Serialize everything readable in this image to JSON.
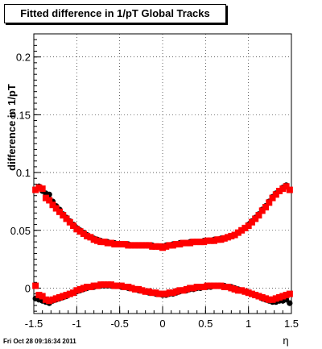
{
  "title": "Fitted difference in 1/pT  Global Tracks",
  "footer": "Fri Oct 28 09:16:34 2011",
  "chart_data": {
    "type": "scatter",
    "title": "Fitted difference in 1/pT  Global Tracks",
    "xlabel": "η",
    "ylabel": "difference in 1/pT",
    "xlim": [
      -1.5,
      1.5
    ],
    "ylim": [
      -0.022,
      0.22
    ],
    "grid": true,
    "x_ticks": [
      -1.5,
      -1,
      -0.5,
      0,
      0.5,
      1,
      1.5
    ],
    "x_tick_labels": [
      "-1.5",
      "-1",
      "-0.5",
      "0",
      "0.5",
      "1",
      "1.5"
    ],
    "y_ticks": [
      0,
      0.05,
      0.1,
      0.15,
      0.2
    ],
    "y_tick_labels": [
      "0",
      "0.05",
      "0.1",
      "0.15",
      "0.2"
    ],
    "marker_colors": {
      "black": "#000000",
      "red": "#ff0000"
    },
    "upper_points_eta": [
      -1.48,
      -1.44,
      -1.4,
      -1.36,
      -1.32,
      -1.28,
      -1.24,
      -1.2,
      -1.16,
      -1.12,
      -1.08,
      -1.04,
      -1.0,
      -0.96,
      -0.92,
      -0.88,
      -0.84,
      -0.8,
      -0.76,
      -0.72,
      -0.68,
      -0.64,
      -0.6,
      -0.56,
      -0.52,
      -0.48,
      -0.44,
      -0.4,
      -0.36,
      -0.32,
      -0.28,
      -0.24,
      -0.2,
      -0.16,
      -0.12,
      -0.08,
      -0.04,
      0.0,
      0.04,
      0.08,
      0.12,
      0.16,
      0.2,
      0.24,
      0.28,
      0.32,
      0.36,
      0.4,
      0.44,
      0.48,
      0.52,
      0.56,
      0.6,
      0.64,
      0.68,
      0.72,
      0.76,
      0.8,
      0.84,
      0.88,
      0.92,
      0.96,
      1.0,
      1.04,
      1.08,
      1.12,
      1.16,
      1.2,
      1.24,
      1.28,
      1.32,
      1.36,
      1.4,
      1.44,
      1.48
    ],
    "upper_black": [
      0.085,
      0.088,
      0.084,
      0.082,
      0.081,
      0.075,
      0.071,
      0.068,
      0.064,
      0.061,
      0.058,
      0.055,
      0.052,
      0.05,
      0.048,
      0.046,
      0.044,
      0.043,
      0.042,
      0.041,
      0.04,
      0.04,
      0.039,
      0.039,
      0.038,
      0.038,
      0.038,
      0.038,
      0.037,
      0.037,
      0.037,
      0.037,
      0.037,
      0.037,
      0.037,
      0.036,
      0.036,
      0.036,
      0.037,
      0.037,
      0.038,
      0.038,
      0.039,
      0.039,
      0.039,
      0.04,
      0.04,
      0.04,
      0.04,
      0.041,
      0.041,
      0.041,
      0.042,
      0.042,
      0.043,
      0.043,
      0.044,
      0.045,
      0.046,
      0.048,
      0.05,
      0.052,
      0.055,
      0.058,
      0.061,
      0.064,
      0.068,
      0.071,
      0.075,
      0.079,
      0.082,
      0.084,
      0.087,
      0.089,
      0.085
    ],
    "upper_red": [
      0.085,
      0.087,
      0.086,
      0.078,
      0.076,
      0.072,
      0.069,
      0.066,
      0.063,
      0.06,
      0.057,
      0.054,
      0.051,
      0.049,
      0.047,
      0.045,
      0.044,
      0.042,
      0.041,
      0.04,
      0.04,
      0.039,
      0.039,
      0.038,
      0.038,
      0.038,
      0.038,
      0.037,
      0.037,
      0.037,
      0.037,
      0.037,
      0.037,
      0.037,
      0.036,
      0.036,
      0.036,
      0.035,
      0.036,
      0.037,
      0.037,
      0.038,
      0.038,
      0.039,
      0.039,
      0.039,
      0.04,
      0.04,
      0.04,
      0.04,
      0.041,
      0.041,
      0.041,
      0.042,
      0.042,
      0.043,
      0.044,
      0.045,
      0.046,
      0.048,
      0.05,
      0.052,
      0.054,
      0.057,
      0.06,
      0.063,
      0.067,
      0.07,
      0.074,
      0.078,
      0.081,
      0.084,
      0.086,
      0.088,
      0.085
    ],
    "lower_black": [
      -0.009,
      -0.01,
      -0.011,
      -0.012,
      -0.013,
      -0.011,
      -0.01,
      -0.009,
      -0.008,
      -0.007,
      -0.005,
      -0.004,
      -0.003,
      -0.002,
      -0.001,
      0.0,
      0.001,
      0.001,
      0.002,
      0.002,
      0.002,
      0.002,
      0.002,
      0.002,
      0.002,
      0.001,
      0.001,
      0.0,
      0.0,
      -0.001,
      -0.002,
      -0.002,
      -0.003,
      -0.004,
      -0.004,
      -0.005,
      -0.005,
      -0.006,
      -0.006,
      -0.005,
      -0.005,
      -0.004,
      -0.003,
      -0.002,
      -0.002,
      -0.001,
      -0.001,
      0.0,
      0.0,
      0.001,
      0.001,
      0.001,
      0.002,
      0.002,
      0.002,
      0.002,
      0.001,
      0.001,
      0.0,
      -0.001,
      -0.002,
      -0.003,
      -0.004,
      -0.005,
      -0.006,
      -0.007,
      -0.009,
      -0.01,
      -0.011,
      -0.012,
      -0.012,
      -0.011,
      -0.011,
      -0.01,
      -0.013
    ],
    "lower_red": [
      0.002,
      -0.006,
      -0.007,
      -0.01,
      -0.011,
      -0.01,
      -0.009,
      -0.008,
      -0.007,
      -0.006,
      -0.005,
      -0.004,
      -0.002,
      -0.001,
      0.0,
      0.001,
      0.001,
      0.002,
      0.002,
      0.003,
      0.003,
      0.003,
      0.003,
      0.002,
      0.002,
      0.002,
      0.001,
      0.001,
      0.0,
      -0.001,
      -0.001,
      -0.002,
      -0.003,
      -0.003,
      -0.004,
      -0.004,
      -0.005,
      -0.005,
      -0.005,
      -0.004,
      -0.004,
      -0.003,
      -0.002,
      -0.002,
      -0.001,
      0.0,
      0.0,
      0.001,
      0.001,
      0.001,
      0.002,
      0.002,
      0.002,
      0.002,
      0.002,
      0.001,
      0.001,
      0.0,
      -0.001,
      -0.002,
      -0.002,
      -0.003,
      -0.004,
      -0.005,
      -0.006,
      -0.007,
      -0.008,
      -0.009,
      -0.01,
      -0.01,
      -0.009,
      -0.008,
      -0.007,
      -0.006,
      -0.005
    ]
  }
}
